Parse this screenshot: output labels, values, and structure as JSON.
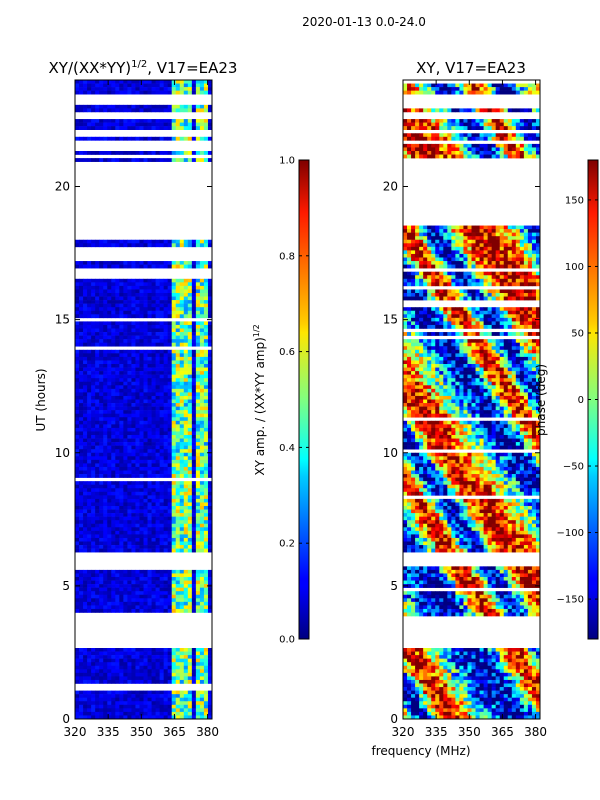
{
  "figure_title": "2020-01-13 0.0-24.0",
  "shared_xlabel": "frequency (MHz)",
  "chart_data": [
    {
      "type": "heatmap",
      "title_main": "XY/(XX*YY)",
      "title_sup": "1/2",
      "title_rest": ", V17=EA23",
      "xlabel": "",
      "ylabel": "UT (hours)",
      "xlim": [
        320,
        382
      ],
      "ylim": [
        0,
        24
      ],
      "xticks": [
        "320",
        "335",
        "350",
        "365",
        "380"
      ],
      "xtick_values": [
        320,
        335,
        350,
        365,
        380
      ],
      "yticks": [
        "0",
        "5",
        "10",
        "15",
        "20"
      ],
      "ytick_values": [
        0,
        5,
        10,
        15,
        20
      ],
      "colorbar": {
        "label_main": "XY amp. / (XX*YY amp)",
        "label_sup": "1/2",
        "range": [
          0.0,
          1.0
        ],
        "ticks": [
          "0.0",
          "0.2",
          "0.4",
          "0.6",
          "0.8",
          "1.0"
        ],
        "tick_values": [
          0.0,
          0.2,
          0.4,
          0.6,
          0.8,
          1.0
        ]
      },
      "colormap": "jet",
      "data_gaps_hours": [
        [
          2.7,
          4.0
        ],
        [
          5.6,
          6.3
        ],
        [
          16.5,
          16.9
        ],
        [
          17.2,
          17.8
        ],
        [
          18.0,
          18.5
        ],
        [
          18.6,
          21.0
        ],
        [
          21.6,
          21.8
        ],
        [
          22.0,
          22.2
        ],
        [
          22.6,
          22.8
        ],
        [
          23.1,
          23.5
        ]
      ]
    },
    {
      "type": "heatmap",
      "title_main": "XY, V17=EA23",
      "xlabel": "",
      "ylabel": "",
      "xlim": [
        320,
        382
      ],
      "ylim": [
        0,
        24
      ],
      "xticks": [
        "320",
        "335",
        "350",
        "365",
        "380"
      ],
      "xtick_values": [
        320,
        335,
        350,
        365,
        380
      ],
      "yticks": [
        "0",
        "5",
        "10",
        "15",
        "20"
      ],
      "ytick_values": [
        0,
        5,
        10,
        15,
        20
      ],
      "colorbar": {
        "label_main": "phase (deg)",
        "range": [
          -180,
          180
        ],
        "ticks": [
          "−150",
          "−100",
          "−50",
          "0",
          "50",
          "100",
          "150"
        ],
        "tick_values": [
          -150,
          -100,
          -50,
          0,
          50,
          100,
          150
        ]
      },
      "colormap": "jet",
      "data_gaps_hours": [
        [
          2.7,
          3.9
        ],
        [
          5.7,
          6.3
        ],
        [
          18.6,
          21.0
        ],
        [
          21.6,
          21.8
        ],
        [
          22.0,
          22.2
        ],
        [
          22.6,
          22.8
        ],
        [
          23.1,
          23.5
        ]
      ]
    }
  ]
}
